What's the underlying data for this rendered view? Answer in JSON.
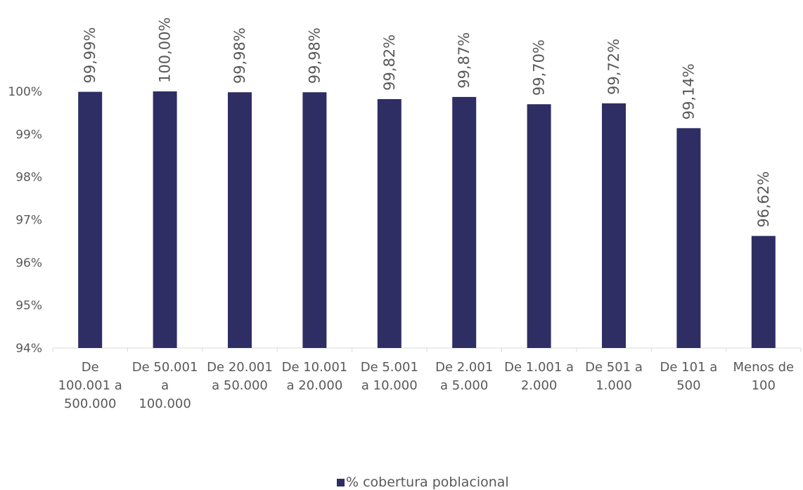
{
  "chart_data": {
    "type": "bar",
    "categories": [
      [
        "De",
        "100.001 a",
        "500.000"
      ],
      [
        "De 50.001",
        "a",
        "100.000"
      ],
      [
        "De 20.001",
        "a 50.000"
      ],
      [
        "De 10.001",
        "a 20.000"
      ],
      [
        "De 5.001",
        "a 10.000"
      ],
      [
        "De 2.001",
        "a 5.000"
      ],
      [
        "De 1.001 a",
        "2.000"
      ],
      [
        "De 501 a",
        "1.000"
      ],
      [
        "De 101 a",
        "500"
      ],
      [
        "Menos de",
        "100"
      ]
    ],
    "series": [
      {
        "name": "% cobertura poblacional",
        "values": [
          99.99,
          100.0,
          99.98,
          99.98,
          99.82,
          99.87,
          99.7,
          99.72,
          99.14,
          96.62
        ],
        "labels": [
          "99,99%",
          "100,00%",
          "99,98%",
          "99,98%",
          "99,82%",
          "99,87%",
          "99,70%",
          "99,72%",
          "99,14%",
          "96,62%"
        ],
        "color": "#2e2d64"
      }
    ],
    "yticks": [
      94,
      95,
      96,
      97,
      98,
      99,
      100
    ],
    "ytick_labels": [
      "94%",
      "95%",
      "96%",
      "97%",
      "98%",
      "99%",
      "100%"
    ],
    "ylim": [
      94,
      100
    ],
    "grid": false,
    "legend_position": "bottom"
  }
}
